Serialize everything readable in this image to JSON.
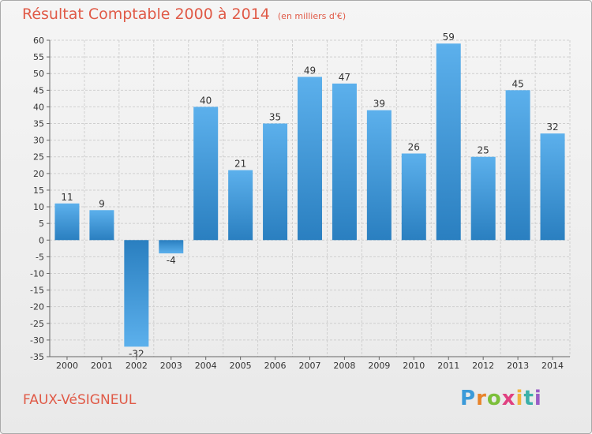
{
  "title": {
    "main": "Résultat Comptable 2000 à 2014",
    "unit": "(en milliers d'€)"
  },
  "commune": "FAUX-VéSIGNEUL",
  "logo": {
    "letters": [
      "P",
      "r",
      "o",
      "x",
      "i",
      "t",
      "i"
    ],
    "colors": [
      "#3b9ad9",
      "#e8832a",
      "#7cbf3a",
      "#e04080",
      "#f2b33c",
      "#3bb0a8",
      "#9a5cc6"
    ]
  },
  "colors": {
    "bar_light": "#5cb0ec",
    "bar_dark": "#2a7fc0",
    "grid": "#cfcfcf",
    "title": "#e05a47"
  },
  "chart_data": {
    "type": "bar",
    "title": "Résultat Comptable 2000 à 2014",
    "subtitle": "(en milliers d'€)",
    "xlabel": "",
    "ylabel": "",
    "categories": [
      "2000",
      "2001",
      "2002",
      "2003",
      "2004",
      "2005",
      "2006",
      "2007",
      "2008",
      "2009",
      "2010",
      "2011",
      "2012",
      "2013",
      "2014"
    ],
    "values": [
      11,
      9,
      -32,
      -4,
      40,
      21,
      35,
      49,
      47,
      39,
      26,
      59,
      25,
      45,
      32
    ],
    "ylim": [
      -35,
      60
    ],
    "yticks": [
      60,
      55,
      50,
      45,
      40,
      35,
      30,
      25,
      20,
      15,
      10,
      5,
      0,
      -5,
      -10,
      -15,
      -20,
      -25,
      -30,
      -35
    ],
    "grid": true,
    "legend": "none"
  }
}
